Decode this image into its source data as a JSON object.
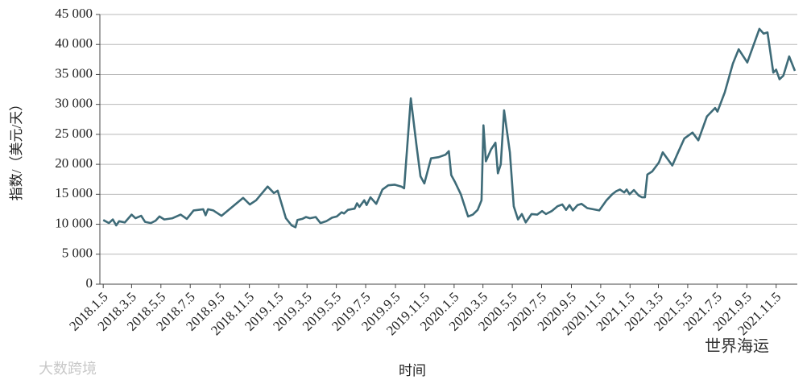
{
  "chart_data": {
    "type": "line",
    "y_label": "指数/（美元/天）",
    "x_label": "时间",
    "annotations": [
      "大数跨境",
      "世界海运"
    ],
    "grid": true,
    "xlim": [
      "2017.12.29",
      "2021.12.19"
    ],
    "xticks": [
      "2018.1.5",
      "2018.3.5",
      "2018.5.5",
      "2018.7.5",
      "2018.9.5",
      "2018.11.5",
      "2019.1.5",
      "2019.3.5",
      "2019.5.5",
      "2019.7.5",
      "2019.9.5",
      "2019.11.5",
      "2020.1.5",
      "2020.3.5",
      "2020.5.5",
      "2020.7.5",
      "2020.9.5",
      "2020.11.5",
      "2021.1.5",
      "2021.3.5",
      "2021.5.5",
      "2021.7.5",
      "2021.9.5",
      "2021.11.5"
    ],
    "ylim": [
      0,
      45000
    ],
    "yticks": [
      0,
      {
        "value": 5000,
        "label": "5 000"
      },
      {
        "value": 10000,
        "label": "10 000"
      },
      {
        "value": 15000,
        "label": "15 000"
      },
      {
        "value": 20000,
        "label": "20 000"
      },
      {
        "value": 25000,
        "label": "25 000"
      },
      {
        "value": 30000,
        "label": "30 000"
      },
      {
        "value": 35000,
        "label": "35 000"
      },
      {
        "value": 40000,
        "label": "40 000"
      },
      {
        "value": 45000,
        "label": "45 000"
      }
    ],
    "x": [
      "2018.1.5",
      "2018.1.17",
      "2018.1.25",
      "2018.2.1",
      "2018.2.7",
      "2018.2.19",
      "2018.3.5",
      "2018.3.13",
      "2018.3.25",
      "2018.4.2",
      "2018.4.14",
      "2018.4.24",
      "2018.5.2",
      "2018.5.12",
      "2018.5.29",
      "2018.6.15",
      "2018.6.28",
      "2018.7.12",
      "2018.8.1",
      "2018.8.6",
      "2018.8.11",
      "2018.8.22",
      "2018.9.8",
      "2018.10.23",
      "2018.11.6",
      "2018.11.19",
      "2018.12.13",
      "2018.12.26",
      "2019.1.3",
      "2019.1.20",
      "2019.2.1",
      "2019.2.9",
      "2019.2.13",
      "2019.2.23",
      "2019.3.3",
      "2019.3.11",
      "2019.3.23",
      "2019.4.2",
      "2019.4.14",
      "2019.4.26",
      "2019.5.6",
      "2019.5.16",
      "2019.5.21",
      "2019.5.29",
      "2019.6.12",
      "2019.6.17",
      "2019.6.22",
      "2019.7.2",
      "2019.7.7",
      "2019.7.15",
      "2019.7.27",
      "2019.8.9",
      "2019.8.21",
      "2019.9.3",
      "2019.9.17",
      "2019.9.23",
      "2019.10.7",
      "2019.10.19",
      "2019.10.27",
      "2019.11.4",
      "2019.11.18",
      "2019.12.4",
      "2019.12.18",
      "2019.12.25",
      "2019.12.30",
      "2020.1.7",
      "2020.1.19",
      "2020.1.29",
      "2020.2.3",
      "2020.2.13",
      "2020.2.23",
      "2020.3.2",
      "2020.3.6",
      "2020.3.11",
      "2020.3.22",
      "2020.3.31",
      "2020.4.5",
      "2020.4.11",
      "2020.4.18",
      "2020.4.30",
      "2020.5.8",
      "2020.5.17",
      "2020.5.25",
      "2020.6.2",
      "2020.6.14",
      "2020.6.26",
      "2020.7.6",
      "2020.7.14",
      "2020.7.26",
      "2020.8.7",
      "2020.8.17",
      "2020.8.25",
      "2020.9.1",
      "2020.9.8",
      "2020.9.18",
      "2020.9.26",
      "2020.10.8",
      "2020.11.2",
      "2020.11.17",
      "2020.11.29",
      "2020.12.7",
      "2020.12.15",
      "2020.12.24",
      "2020.12.29",
      "2021.1.4",
      "2021.1.13",
      "2021.1.23",
      "2021.1.30",
      "2021.2.5",
      "2021.2.10",
      "2021.2.20",
      "2021.3.6",
      "2021.3.14",
      "2021.4.3",
      "2021.4.15",
      "2021.4.28",
      "2021.5.15",
      "2021.5.27",
      "2021.6.14",
      "2021.7.1",
      "2021.7.6",
      "2021.7.21",
      "2021.8.7",
      "2021.8.19",
      "2021.9.6",
      "2021.10.1",
      "2021.10.10",
      "2021.10.18",
      "2021.10.30",
      "2021.11.5",
      "2021.11.12",
      "2021.11.20",
      "2021.12.2",
      "2021.12.14"
    ],
    "series": [
      {
        "name": "指数",
        "color": "#3e6b78",
        "values": [
          10700,
          10200,
          10800,
          9800,
          10500,
          10300,
          11600,
          11000,
          11400,
          10400,
          10200,
          10600,
          11300,
          10800,
          11000,
          11600,
          10900,
          12300,
          12500,
          11500,
          12500,
          12300,
          11400,
          14400,
          13300,
          14000,
          16300,
          15200,
          15600,
          11000,
          9800,
          9500,
          10700,
          10900,
          11200,
          11000,
          11200,
          10200,
          10500,
          11100,
          11300,
          12000,
          11800,
          12400,
          12600,
          13500,
          12900,
          14000,
          13200,
          14500,
          13400,
          15800,
          16500,
          16600,
          16300,
          16000,
          31000,
          23000,
          18000,
          16800,
          21000,
          21200,
          21600,
          22200,
          18200,
          17000,
          15000,
          12500,
          11300,
          11600,
          12400,
          14000,
          26500,
          20500,
          22500,
          23600,
          18500,
          20000,
          29000,
          22000,
          13000,
          10800,
          11700,
          10300,
          11700,
          11600,
          12200,
          11700,
          12200,
          13000,
          13300,
          12400,
          13200,
          12300,
          13200,
          13400,
          12700,
          12300,
          14000,
          15000,
          15500,
          15800,
          15300,
          15800,
          15000,
          15700,
          14800,
          14500,
          14500,
          18300,
          18800,
          20300,
          22000,
          19800,
          22000,
          24300,
          25300,
          24000,
          28000,
          29400,
          28800,
          32000,
          36800,
          39200,
          37000,
          42600,
          41800,
          42000,
          35300,
          35800,
          34200,
          34800,
          38000,
          35600
        ]
      }
    ]
  }
}
